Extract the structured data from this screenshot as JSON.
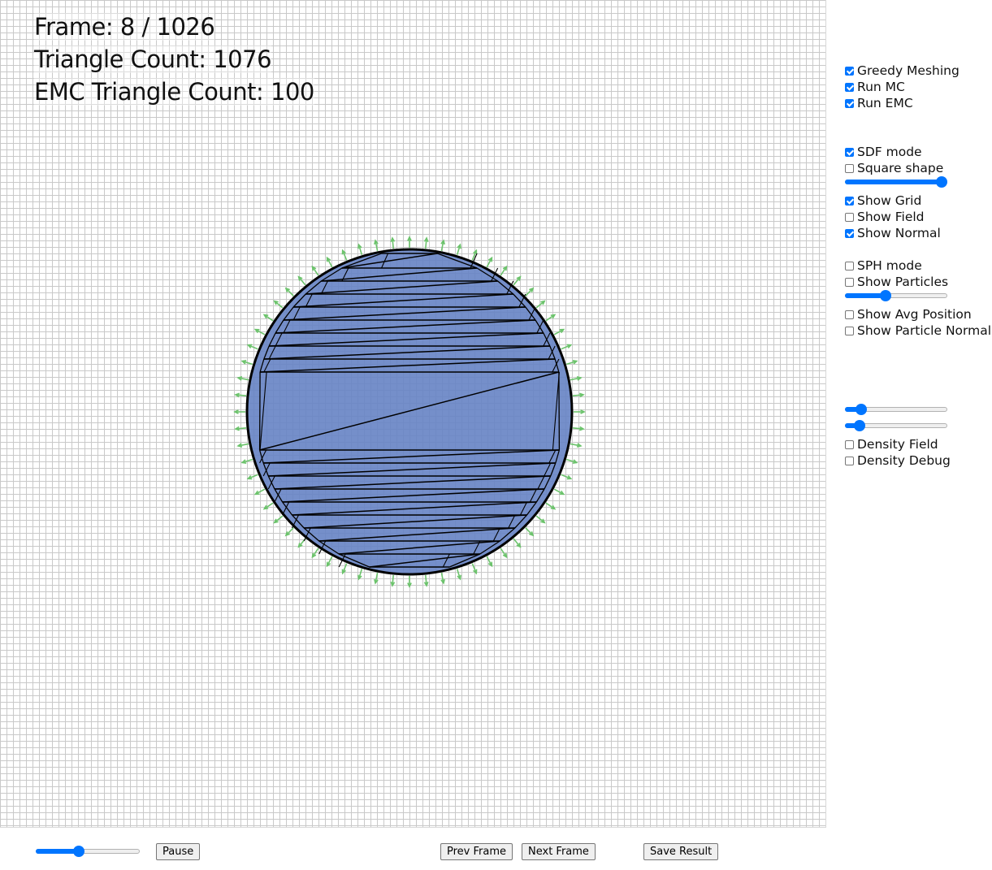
{
  "hud": {
    "frame": "Frame: 8 / 1026",
    "triangle_count": "Triangle Count: 1076",
    "emc_triangle_count": "EMC Triangle Count: 100"
  },
  "controls": {
    "greedy_meshing": {
      "label": "Greedy Meshing",
      "checked": true
    },
    "run_mc": {
      "label": "Run MC",
      "checked": true
    },
    "run_emc": {
      "label": "Run EMC",
      "checked": true
    },
    "sdf_mode": {
      "label": "SDF mode",
      "checked": true
    },
    "square_shape": {
      "label": "Square shape",
      "checked": false
    },
    "shape_slider": {
      "value": 1.0
    },
    "show_grid": {
      "label": "Show Grid",
      "checked": true
    },
    "show_field": {
      "label": "Show Field",
      "checked": false
    },
    "show_normal": {
      "label": "Show Normal",
      "checked": true
    },
    "sph_mode": {
      "label": "SPH mode",
      "checked": false
    },
    "show_particles": {
      "label": "Show Particles",
      "checked": false
    },
    "particle_slider": {
      "value": 0.38
    },
    "show_avg_position": {
      "label": "Show Avg Position",
      "checked": false
    },
    "show_particle_normal": {
      "label": "Show Particle Normal",
      "checked": false
    },
    "param_slider_1": {
      "value": 0.12
    },
    "param_slider_2": {
      "value": 0.1
    },
    "density_field": {
      "label": "Density Field",
      "checked": false
    },
    "density_debug": {
      "label": "Density Debug",
      "checked": false
    }
  },
  "bottom": {
    "speed_slider": {
      "value": 0.4
    },
    "pause_label": "Pause",
    "prev_label": "Prev Frame",
    "next_label": "Next Frame",
    "save_label": "Save Result"
  },
  "colors": {
    "fill": "#6683c4",
    "outline": "#000000",
    "normal": "#6cc36c",
    "accent": "#0075ff"
  }
}
